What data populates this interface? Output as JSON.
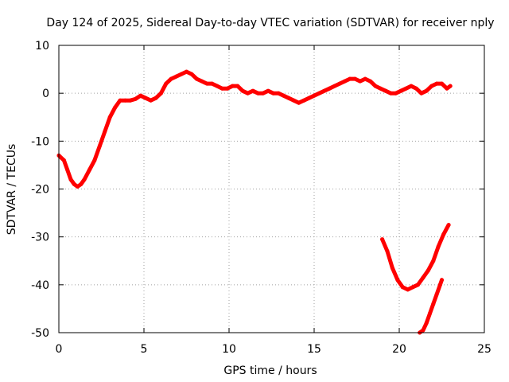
{
  "chart_data": {
    "type": "line",
    "title": "Day 124 of 2025, Sidereal Day-to-day VTEC variation (SDTVAR) for receiver nply",
    "xlabel": "GPS time / hours",
    "ylabel": "SDTVAR / TECUs",
    "xlim": [
      0,
      25
    ],
    "ylim": [
      -50,
      10
    ],
    "xticks": [
      0,
      5,
      10,
      15,
      20,
      25
    ],
    "yticks": [
      -50,
      -40,
      -30,
      -20,
      -10,
      0,
      10
    ],
    "grid": true,
    "series_color": "#ff0000",
    "series": [
      {
        "name": "main-trace",
        "x": [
          0.0,
          0.3,
          0.5,
          0.7,
          0.9,
          1.1,
          1.3,
          1.5,
          1.8,
          2.1,
          2.4,
          2.7,
          3.0,
          3.3,
          3.6,
          3.9,
          4.2,
          4.5,
          4.8,
          5.1,
          5.4,
          5.7,
          6.0,
          6.3,
          6.6,
          6.9,
          7.2,
          7.5,
          7.8,
          8.1,
          8.4,
          8.7,
          9.0,
          9.3,
          9.6,
          9.9,
          10.2,
          10.5,
          10.8,
          11.1,
          11.4,
          11.7,
          12.0,
          12.3,
          12.6,
          12.9,
          13.2,
          13.5,
          13.8,
          14.1,
          14.4,
          14.7,
          15.0,
          15.3,
          15.6,
          15.9,
          16.2,
          16.5,
          16.8,
          17.1,
          17.4,
          17.7,
          18.0,
          18.3,
          18.6,
          18.9,
          19.2,
          19.5,
          19.8,
          20.1,
          20.4,
          20.7,
          21.0,
          21.3,
          21.6,
          21.9,
          22.2,
          22.5,
          22.8,
          23.0
        ],
        "y": [
          -13,
          -14,
          -16,
          -18,
          -19,
          -19.5,
          -19,
          -18,
          -16,
          -14,
          -11,
          -8,
          -5,
          -3,
          -1.5,
          -1.5,
          -1.5,
          -1.2,
          -0.5,
          -1,
          -1.5,
          -1,
          0,
          2,
          3,
          3.5,
          4,
          4.5,
          4,
          3,
          2.5,
          2,
          2,
          1.5,
          1,
          1,
          1.5,
          1.5,
          0.5,
          0,
          0.5,
          0,
          0,
          0.5,
          0,
          0,
          -0.5,
          -1,
          -1.5,
          -2,
          -1.5,
          -1,
          -0.5,
          0,
          0.5,
          1,
          1.5,
          2,
          2.5,
          3,
          3,
          2.5,
          3,
          2.5,
          1.5,
          1,
          0.5,
          0,
          0,
          0.5,
          1,
          1.5,
          1,
          0,
          0.5,
          1.5,
          2,
          2,
          1,
          1.5
        ]
      },
      {
        "name": "late-trace-upper",
        "x": [
          19.0,
          19.3,
          19.6,
          19.9,
          20.2,
          20.5,
          20.8,
          21.1,
          21.4,
          21.7,
          22.0,
          22.3,
          22.6,
          22.9
        ],
        "y": [
          -30.5,
          -33,
          -36.5,
          -39,
          -40.5,
          -41,
          -40.5,
          -40,
          -38.5,
          -37,
          -35,
          -32,
          -29.5,
          -27.5
        ]
      },
      {
        "name": "late-trace-lower",
        "x": [
          21.2,
          21.4,
          21.6,
          21.8,
          22.0,
          22.2,
          22.4,
          22.5
        ],
        "y": [
          -50,
          -49.5,
          -48,
          -46,
          -44,
          -42,
          -40,
          -39
        ]
      }
    ]
  }
}
